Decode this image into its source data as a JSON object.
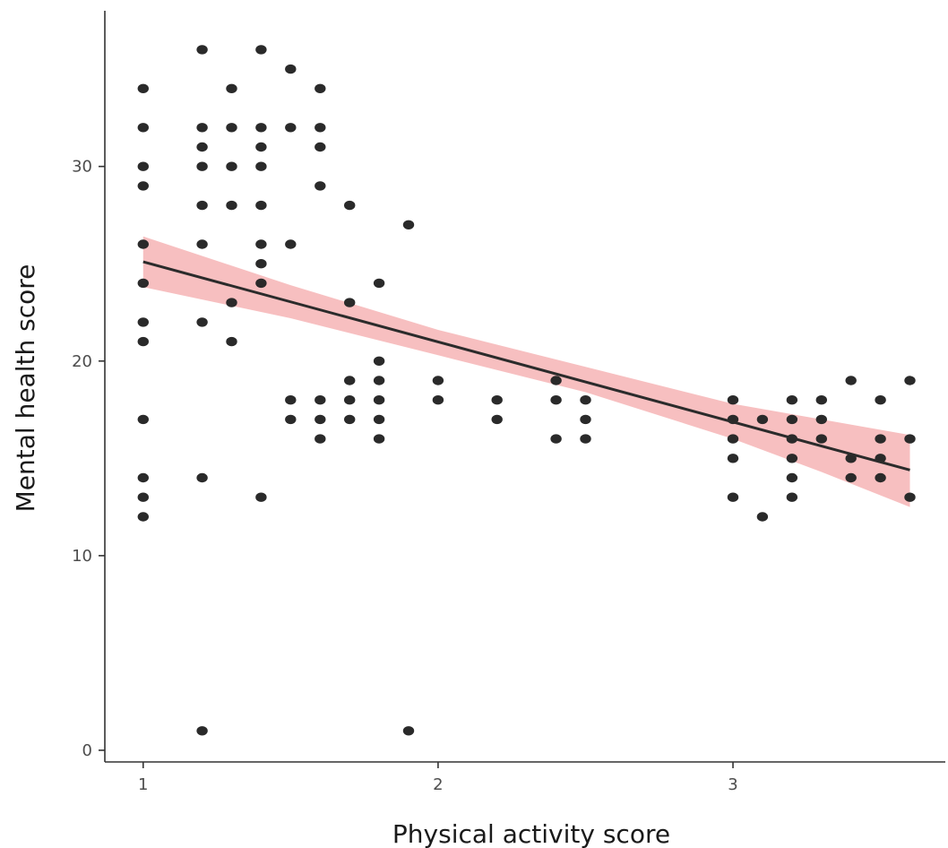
{
  "chart_data": {
    "type": "scatter",
    "title": "",
    "xlabel": "Physical activity score",
    "ylabel": "Mental health score",
    "xlim": [
      0.87,
      3.72
    ],
    "ylim": [
      -0.6,
      38
    ],
    "x_ticks": [
      1,
      2,
      3
    ],
    "y_ticks": [
      0,
      10,
      20,
      30
    ],
    "grid": false,
    "legend": "none",
    "point_color": "#2a2a2a",
    "band_color": "#f4a6a8",
    "line_color": "#2b2b2b",
    "points": [
      [
        1,
        34
      ],
      [
        1,
        32
      ],
      [
        1,
        30
      ],
      [
        1,
        29
      ],
      [
        1,
        26
      ],
      [
        1,
        24
      ],
      [
        1,
        22
      ],
      [
        1,
        21
      ],
      [
        1,
        17
      ],
      [
        1,
        14
      ],
      [
        1,
        13
      ],
      [
        1,
        12
      ],
      [
        1.2,
        36
      ],
      [
        1.2,
        32
      ],
      [
        1.2,
        31
      ],
      [
        1.2,
        30
      ],
      [
        1.2,
        28
      ],
      [
        1.2,
        26
      ],
      [
        1.2,
        22
      ],
      [
        1.2,
        14
      ],
      [
        1.2,
        1
      ],
      [
        1.3,
        34
      ],
      [
        1.3,
        32
      ],
      [
        1.3,
        30
      ],
      [
        1.3,
        28
      ],
      [
        1.3,
        23
      ],
      [
        1.3,
        21
      ],
      [
        1.4,
        36
      ],
      [
        1.4,
        32
      ],
      [
        1.4,
        31
      ],
      [
        1.4,
        30
      ],
      [
        1.4,
        28
      ],
      [
        1.4,
        26
      ],
      [
        1.4,
        25
      ],
      [
        1.4,
        24
      ],
      [
        1.4,
        13
      ],
      [
        1.5,
        35
      ],
      [
        1.5,
        32
      ],
      [
        1.5,
        26
      ],
      [
        1.5,
        18
      ],
      [
        1.5,
        17
      ],
      [
        1.6,
        34
      ],
      [
        1.6,
        32
      ],
      [
        1.6,
        31
      ],
      [
        1.6,
        29
      ],
      [
        1.6,
        18
      ],
      [
        1.6,
        17
      ],
      [
        1.6,
        16
      ],
      [
        1.7,
        28
      ],
      [
        1.7,
        23
      ],
      [
        1.7,
        19
      ],
      [
        1.7,
        18
      ],
      [
        1.7,
        17
      ],
      [
        1.8,
        24
      ],
      [
        1.8,
        20
      ],
      [
        1.8,
        19
      ],
      [
        1.8,
        18
      ],
      [
        1.8,
        17
      ],
      [
        1.8,
        16
      ],
      [
        1.9,
        27
      ],
      [
        1.9,
        1
      ],
      [
        2,
        19
      ],
      [
        2,
        18
      ],
      [
        2.2,
        18
      ],
      [
        2.2,
        17
      ],
      [
        2.4,
        19
      ],
      [
        2.4,
        18
      ],
      [
        2.4,
        16
      ],
      [
        2.5,
        18
      ],
      [
        2.5,
        17
      ],
      [
        2.5,
        16
      ],
      [
        3,
        18
      ],
      [
        3,
        17
      ],
      [
        3,
        16
      ],
      [
        3,
        15
      ],
      [
        3,
        13
      ],
      [
        3.1,
        17
      ],
      [
        3.1,
        12
      ],
      [
        3.2,
        18
      ],
      [
        3.2,
        17
      ],
      [
        3.2,
        16
      ],
      [
        3.2,
        15
      ],
      [
        3.2,
        14
      ],
      [
        3.2,
        13
      ],
      [
        3.3,
        18
      ],
      [
        3.3,
        17
      ],
      [
        3.3,
        16
      ],
      [
        3.4,
        19
      ],
      [
        3.4,
        15
      ],
      [
        3.4,
        14
      ],
      [
        3.5,
        18
      ],
      [
        3.5,
        16
      ],
      [
        3.5,
        15
      ],
      [
        3.5,
        14
      ],
      [
        3.6,
        19
      ],
      [
        3.6,
        16
      ],
      [
        3.6,
        13
      ]
    ],
    "fit_line": {
      "x": [
        1,
        3.6
      ],
      "y": [
        25.1,
        14.4
      ]
    },
    "confidence_band": {
      "x": [
        1,
        1.5,
        2,
        2.5,
        3,
        3.3,
        3.6
      ],
      "lower": [
        23.8,
        22.2,
        20.3,
        18.4,
        16.0,
        14.3,
        12.5
      ],
      "upper": [
        26.4,
        23.9,
        21.6,
        19.7,
        17.8,
        17.0,
        16.2
      ]
    }
  }
}
